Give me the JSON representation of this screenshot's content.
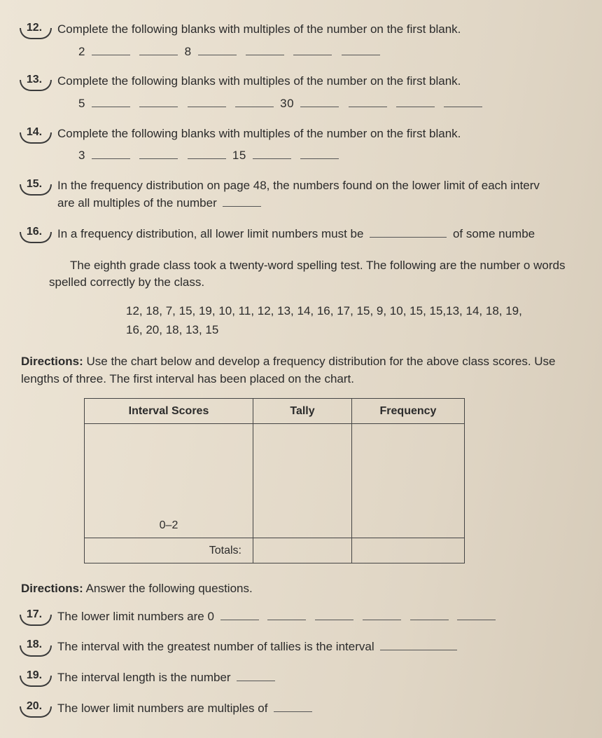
{
  "questions": {
    "q12": {
      "num": "12.",
      "text": "Complete the following blanks with multiples of the number on the first blank.",
      "seq_a": "2",
      "seq_b": "8"
    },
    "q13": {
      "num": "13.",
      "text": "Complete the following blanks with multiples of the number on the first blank.",
      "seq_a": "5",
      "seq_b": "30"
    },
    "q14": {
      "num": "14.",
      "text": "Complete the following blanks with multiples of the number on the first blank.",
      "seq_a": "3",
      "seq_b": "15"
    },
    "q15": {
      "num": "15.",
      "text_a": "In the frequency distribution on page 48, the numbers found on the lower limit of each interv",
      "text_b": "are all multiples of the number"
    },
    "q16": {
      "num": "16.",
      "text_a": "In a frequency distribution, all lower limit numbers must be",
      "text_b": "of some numbe"
    }
  },
  "intro_para": "The eighth grade class took a twenty-word spelling test. The following are the number o words spelled correctly by the class.",
  "data_line1": "12, 18, 7, 15, 19, 10, 11, 12, 13, 14, 16, 17, 15, 9, 10, 15, 15,13, 14, 18, 19,",
  "data_line2": "16, 20, 18, 13, 15",
  "directions1_label": "Directions:",
  "directions1_text": " Use the chart below and develop a frequency distribution for the above class scores. Use lengths of three. The first interval has been placed on the chart.",
  "table": {
    "headers": {
      "c1": "Interval Scores",
      "c2": "Tally",
      "c3": "Frequency"
    },
    "first_interval": "0–2",
    "totals_label": "Totals:"
  },
  "directions2_label": "Directions:",
  "directions2_text": " Answer the following questions.",
  "q17": {
    "num": "17.",
    "text": "The lower limit numbers are 0"
  },
  "q18": {
    "num": "18.",
    "text": "The interval with the greatest number of tallies is the interval"
  },
  "q19": {
    "num": "19.",
    "text": "The interval length is the number"
  },
  "q20": {
    "num": "20.",
    "text": "The lower limit numbers are multiples of"
  }
}
